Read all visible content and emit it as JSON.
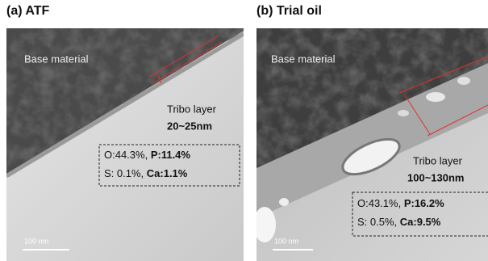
{
  "panels": [
    {
      "title": "(a) ATF",
      "region_label": "Base material",
      "layer_label": "Tribo layer",
      "thickness": "20~25nm",
      "composition": [
        [
          "O:44.3%,",
          "P:11.4%"
        ],
        [
          "S: 0.1%,",
          "Ca:1.1%"
        ]
      ],
      "scale_bar": "100 nm"
    },
    {
      "title": "(b) Trial oil",
      "region_label": "Base material",
      "layer_label": "Tribo layer",
      "thickness": "100~130nm",
      "composition": [
        [
          "O:43.1%,",
          "P:16.2%"
        ],
        [
          "S: 0.5%,",
          "Ca:9.5%"
        ]
      ],
      "scale_bar": "100 nm"
    }
  ]
}
